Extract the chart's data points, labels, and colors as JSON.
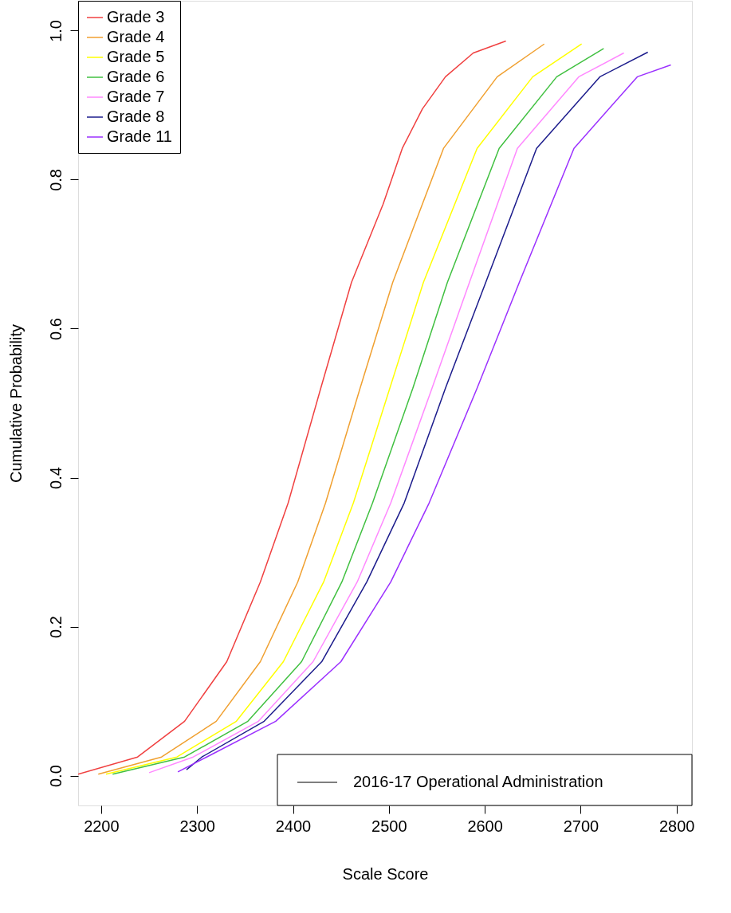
{
  "chart_data": {
    "type": "line",
    "xlabel": "Scale Score",
    "ylabel": "Cumulative Probability",
    "xlim": [
      2176,
      2816
    ],
    "xticks": [
      2200,
      2300,
      2400,
      2500,
      2600,
      2700,
      2800
    ],
    "ylim": [
      -0.04,
      1.04
    ],
    "yticks": [
      {
        "value": 0,
        "label": "0.0"
      },
      {
        "value": 0.2,
        "label": "0.2"
      },
      {
        "value": 0.4,
        "label": "0.4"
      },
      {
        "value": 0.6,
        "label": "0.6"
      },
      {
        "value": 0.8,
        "label": "0.8"
      },
      {
        "value": 1,
        "label": "1.0"
      }
    ],
    "grid": false,
    "legend": "top left",
    "marker": "none",
    "line_style": "solid",
    "annotations": [
      "2016-17 Operational Administration"
    ],
    "series": [
      {
        "name": "Grade 3",
        "color": "#f04040",
        "x": [
          2176,
          2238,
          2287,
          2331,
          2366,
          2395,
          2429,
          2461,
          2494,
          2514,
          2535,
          2559,
          2588,
          2622
        ],
        "values": [
          0.002,
          0.025,
          0.073,
          0.153,
          0.26,
          0.366,
          0.52,
          0.662,
          0.767,
          0.842,
          0.895,
          0.938,
          0.97,
          0.986
        ]
      },
      {
        "name": "Grade 4",
        "color": "#f0a030",
        "x": [
          2197,
          2263,
          2320,
          2366,
          2405,
          2434,
          2470,
          2504,
          2557,
          2613,
          2662
        ],
        "values": [
          0.002,
          0.025,
          0.073,
          0.153,
          0.26,
          0.366,
          0.52,
          0.662,
          0.842,
          0.938,
          0.982
        ]
      },
      {
        "name": "Grade 5",
        "color": "#ffff00",
        "x": [
          2205,
          2279,
          2341,
          2390,
          2432,
          2463,
          2501,
          2536,
          2592,
          2650,
          2701
        ],
        "values": [
          0.002,
          0.025,
          0.073,
          0.153,
          0.26,
          0.366,
          0.52,
          0.662,
          0.842,
          0.938,
          0.982
        ]
      },
      {
        "name": "Grade 6",
        "color": "#40c040",
        "x": [
          2212,
          2287,
          2353,
          2409,
          2451,
          2483,
          2525,
          2561,
          2615,
          2675,
          2724
        ],
        "values": [
          0.002,
          0.025,
          0.073,
          0.153,
          0.26,
          0.366,
          0.52,
          0.662,
          0.842,
          0.938,
          0.976
        ]
      },
      {
        "name": "Grade 7",
        "color": "#ff88ff",
        "x": [
          2250,
          2296,
          2364,
          2421,
          2467,
          2502,
          2545,
          2584,
          2634,
          2698,
          2745
        ],
        "values": [
          0.004,
          0.025,
          0.073,
          0.153,
          0.26,
          0.366,
          0.52,
          0.662,
          0.842,
          0.938,
          0.97
        ]
      },
      {
        "name": "Grade 8",
        "color": "#1c1c8c",
        "x": [
          2289,
          2305,
          2370,
          2430,
          2477,
          2516,
          2559,
          2601,
          2654,
          2720,
          2770
        ],
        "values": [
          0.008,
          0.025,
          0.073,
          0.153,
          0.26,
          0.366,
          0.52,
          0.662,
          0.842,
          0.938,
          0.971
        ]
      },
      {
        "name": "Grade 11",
        "color": "#9b30ff",
        "x": [
          2280,
          2310,
          2382,
          2450,
          2502,
          2542,
          2592,
          2636,
          2693,
          2759,
          2794
        ],
        "values": [
          0.005,
          0.025,
          0.073,
          0.153,
          0.26,
          0.366,
          0.52,
          0.662,
          0.842,
          0.938,
          0.954
        ]
      }
    ]
  }
}
